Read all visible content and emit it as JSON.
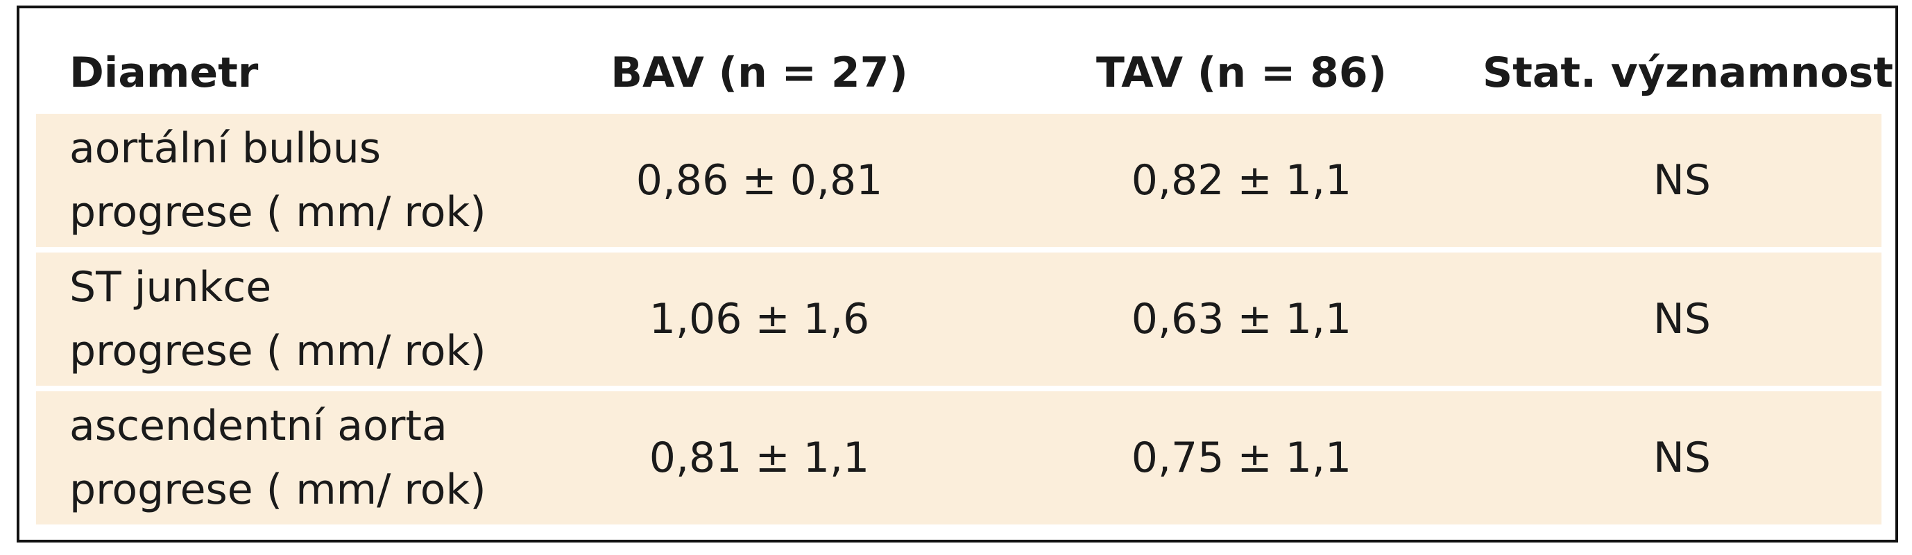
{
  "table": {
    "headers": [
      "Diametr",
      "BAV (n = 27)",
      "TAV (n = 86)",
      "Stat. významnost"
    ],
    "rows": [
      {
        "label_line1": "aortální bulbus",
        "label_line2": "progrese ( mm/ rok)",
        "bav": "0,86 ± 0,81",
        "tav": "0,82 ± 1,1",
        "stat": "NS"
      },
      {
        "label_line1": "ST junkce",
        "label_line2": "progrese ( mm/ rok)",
        "bav": "1,06 ± 1,6",
        "tav": "0,63 ± 1,1",
        "stat": "NS"
      },
      {
        "label_line1": "ascendentní aorta",
        "label_line2": "progrese ( mm/ rok)",
        "bav": "0,81 ± 1,1",
        "tav": "0,75 ± 1,1",
        "stat": "NS"
      }
    ]
  },
  "colors": {
    "row_fill": "#fbeedb",
    "border": "#111111",
    "text": "#1a1a1a"
  }
}
